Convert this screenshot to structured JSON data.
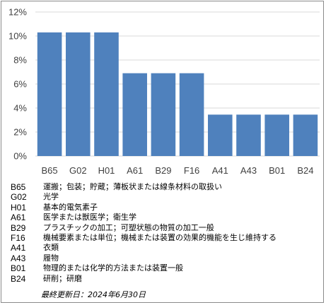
{
  "chart_data": {
    "type": "bar",
    "categories": [
      "B65",
      "G02",
      "H01",
      "A61",
      "B29",
      "F16",
      "A41",
      "A43",
      "B01",
      "B24"
    ],
    "values": [
      10.3,
      10.3,
      10.3,
      6.9,
      6.9,
      6.9,
      3.45,
      3.45,
      3.45,
      3.45
    ],
    "ylim": [
      0,
      12
    ],
    "yticks": [
      "0%",
      "2%",
      "4%",
      "6%",
      "8%",
      "10%",
      "12%"
    ],
    "grid": true,
    "bar_color": "#4f81bd"
  },
  "legend": [
    {
      "code": "B65",
      "desc": "運搬；包装；貯蔵；薄板状または線条材料の取扱い"
    },
    {
      "code": "G02",
      "desc": "光学"
    },
    {
      "code": "H01",
      "desc": "基本的電気素子"
    },
    {
      "code": "A61",
      "desc": "医学または獣医学；衛生学"
    },
    {
      "code": "B29",
      "desc": "プラスチックの加工；可塑状態の物質の加工一般"
    },
    {
      "code": "F16",
      "desc": "機械要素または単位；機械または装置の効果的機能を生じ維持する"
    },
    {
      "code": "A41",
      "desc": "衣類"
    },
    {
      "code": "A43",
      "desc": "履物"
    },
    {
      "code": "B01",
      "desc": "物理的または化学的方法または装置一般"
    },
    {
      "code": "B24",
      "desc": "研削；研磨"
    }
  ],
  "updated": "最終更新日：2024年6月30日"
}
